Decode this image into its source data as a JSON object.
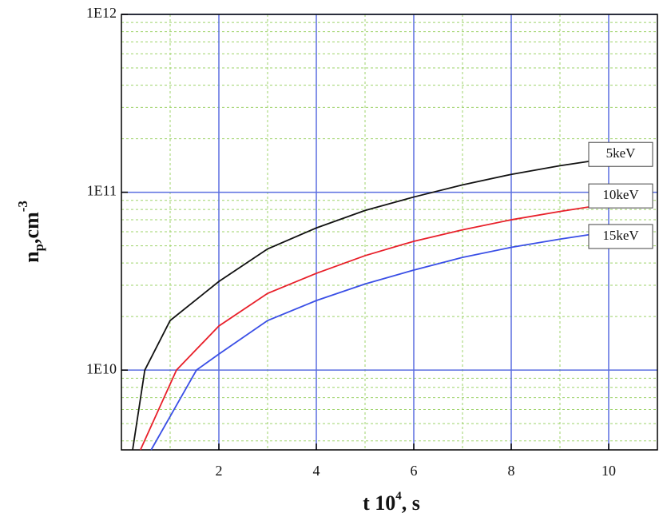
{
  "chart_data": {
    "type": "line",
    "x_label": [
      "t 10",
      "4",
      ", s"
    ],
    "y_label": [
      "n",
      "p",
      ",cm",
      "-3"
    ],
    "log_y": true,
    "grid": true,
    "xlim": [
      0,
      11
    ],
    "xticks": [
      2,
      4,
      6,
      8,
      10
    ],
    "ylim": [
      3560000000,
      1000000000000
    ],
    "yticks": [
      {
        "value": 10000000000,
        "label": "1E10"
      },
      {
        "value": 100000000000,
        "label": "1E11"
      },
      {
        "value": 1000000000000,
        "label": "1E12"
      }
    ],
    "series": [
      {
        "name": "5keV",
        "color": "#111111",
        "x": [
          0.23,
          0.48,
          1,
          2,
          3,
          4,
          5,
          6,
          7,
          8,
          9,
          10
        ],
        "values": [
          3560000000,
          10000000000,
          19000000000,
          31500000000,
          48000000000,
          63000000000,
          79000000000,
          94000000000,
          110000000000,
          126000000000,
          141000000000,
          155000000000
        ]
      },
      {
        "name": "10keV",
        "color": "#e8202a",
        "x": [
          0.39,
          1.13,
          2,
          3,
          4,
          5,
          6,
          7,
          8,
          9,
          10
        ],
        "values": [
          3560000000,
          10000000000,
          17700000000,
          27000000000,
          35000000000,
          44000000000,
          53000000000,
          61500000000,
          70000000000,
          78000000000,
          86000000000
        ]
      },
      {
        "name": "15keV",
        "color": "#3a4fe6",
        "x": [
          0.61,
          1.54,
          2,
          3,
          4,
          5,
          6,
          7,
          8,
          9,
          10
        ],
        "values": [
          3560000000,
          10000000000,
          12300000000,
          19000000000,
          24600000000,
          30500000000,
          36500000000,
          43000000000,
          49000000000,
          54500000000,
          60000000000
        ]
      }
    ]
  }
}
